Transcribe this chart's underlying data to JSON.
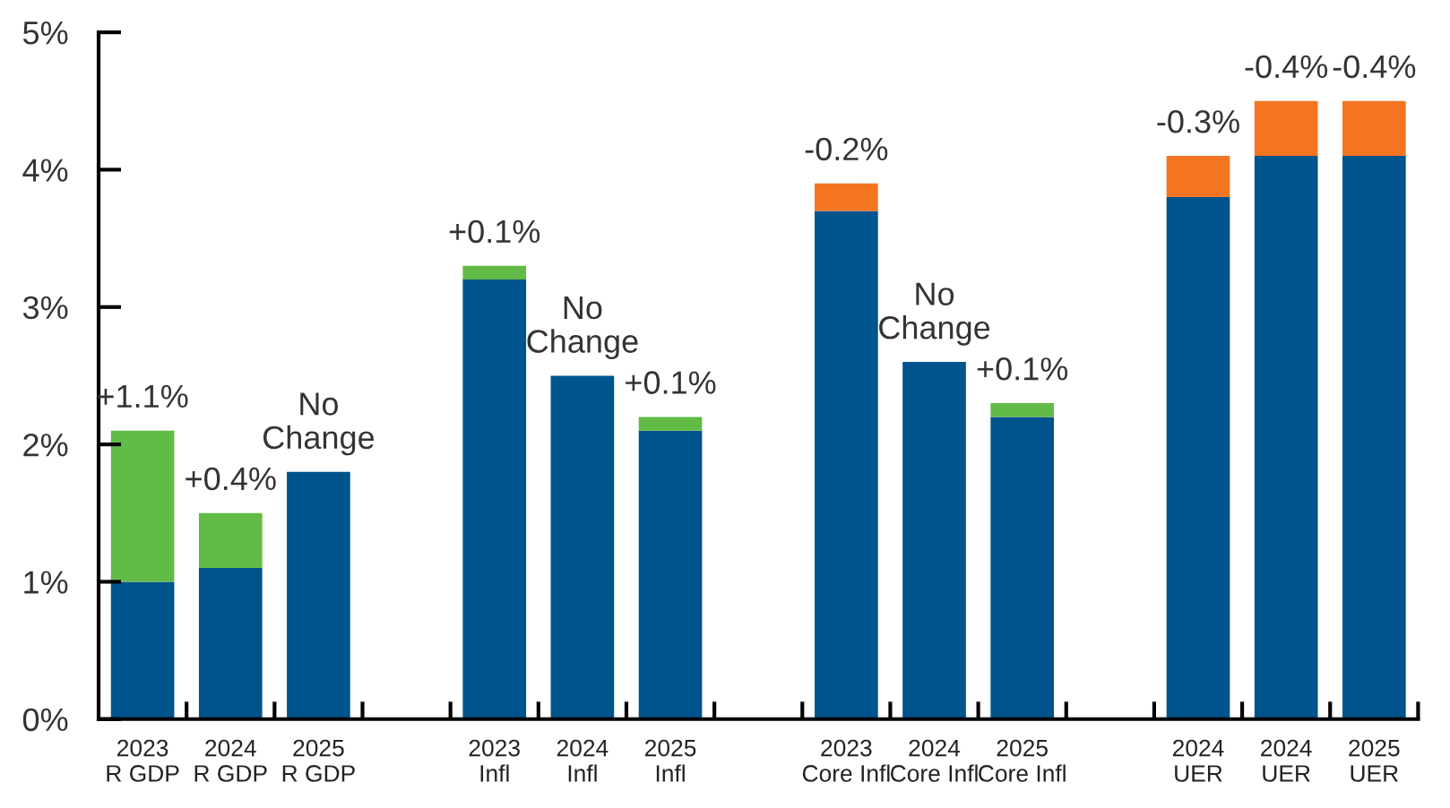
{
  "chart_data": {
    "type": "bar",
    "stacked": true,
    "categories": [
      "2023\nR GDP",
      "2024\nR GDP",
      "2025\nR GDP",
      null,
      "2023\nInfl",
      "2024\nInfl",
      "2025\nInfl",
      null,
      "2023\nCore Infl",
      "2024\nCore Infl",
      "2025\nCore Infl",
      null,
      "2024\nUER",
      "2024\nUER",
      "2025\nUER"
    ],
    "series": [
      {
        "color": "#00548c",
        "values": [
          1.0,
          1.1,
          1.8,
          null,
          3.2,
          2.5,
          2.1,
          null,
          3.7,
          2.6,
          2.2,
          null,
          3.8,
          4.1,
          4.1
        ],
        "value_labels": [
          null,
          null,
          "No\nChange",
          null,
          null,
          "No\nChange",
          null,
          null,
          null,
          "No\nChange",
          null,
          null,
          null,
          null,
          null
        ]
      },
      {
        "color": "#62bb46",
        "values": [
          1.1,
          0.4,
          null,
          null,
          0.1,
          null,
          0.1,
          null,
          null,
          null,
          0.1,
          null,
          null,
          null,
          null
        ],
        "value_labels": [
          "+1.1%",
          "+0.4%",
          null,
          null,
          "+0.1%",
          null,
          "+0.1%",
          null,
          null,
          null,
          "+0.1%",
          null,
          null,
          null,
          null
        ]
      },
      {
        "color": "#f47521",
        "values": [
          null,
          null,
          null,
          null,
          null,
          null,
          null,
          null,
          -0.2,
          null,
          null,
          null,
          -0.3,
          -0.4,
          -0.4
        ],
        "base": [
          null,
          null,
          null,
          null,
          null,
          null,
          null,
          null,
          3.9,
          null,
          null,
          null,
          4.1,
          4.5,
          4.5
        ],
        "value_labels": [
          null,
          null,
          null,
          null,
          null,
          null,
          null,
          null,
          "-0.2%",
          null,
          null,
          null,
          "-0.3%",
          "-0.4%",
          "-0.4%"
        ]
      }
    ],
    "ylim": [
      0,
      5
    ],
    "yticks": [
      {
        "value": 0,
        "label": "0%"
      },
      {
        "value": 1,
        "label": "1%"
      },
      {
        "value": 2,
        "label": "2%"
      },
      {
        "value": 3,
        "label": "3%"
      },
      {
        "value": 4,
        "label": "4%"
      },
      {
        "value": 5,
        "label": "5%"
      }
    ],
    "grid": false,
    "legend": false
  }
}
